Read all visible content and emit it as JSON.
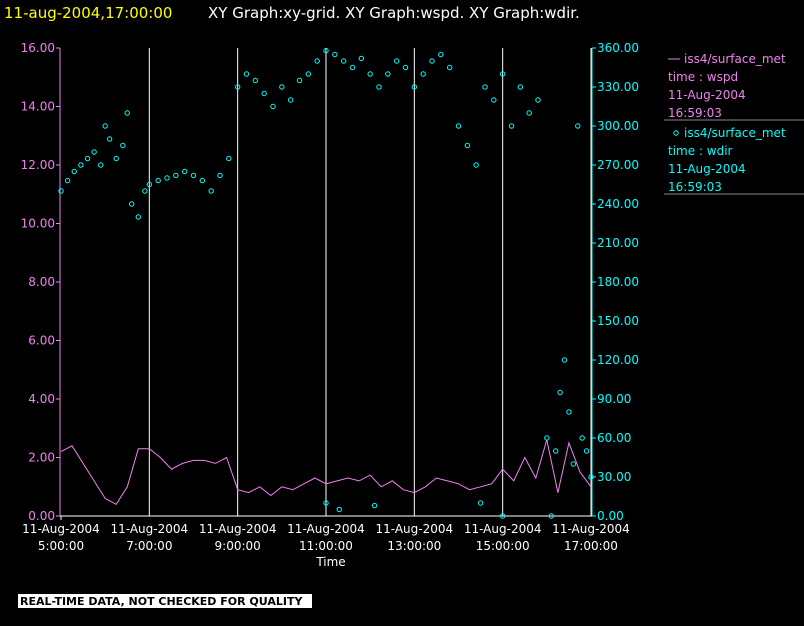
{
  "chart_data": {
    "type": "xy",
    "title_time": "11-aug-2004,17:00:00",
    "title": "XY Graph:xy-grid.  XY Graph:wspd.  XY Graph:wdir.",
    "xlabel": "Time",
    "footer": "REAL-TIME DATA, NOT CHECKED FOR QUALITY",
    "xlim": [
      5,
      17
    ],
    "xticks": [
      {
        "value": 5,
        "label": [
          "11-Aug-2004",
          "5:00:00"
        ]
      },
      {
        "value": 7,
        "label": [
          "11-Aug-2004",
          "7:00:00"
        ]
      },
      {
        "value": 9,
        "label": [
          "11-Aug-2004",
          "9:00:00"
        ]
      },
      {
        "value": 11,
        "label": [
          "11-Aug-2004",
          "11:00:00"
        ]
      },
      {
        "value": 13,
        "label": [
          "11-Aug-2004",
          "13:00:00"
        ]
      },
      {
        "value": 15,
        "label": [
          "11-Aug-2004",
          "15:00:00"
        ]
      },
      {
        "value": 17,
        "label": [
          "11-Aug-2004",
          "17:00:00"
        ]
      }
    ],
    "grid": true,
    "ylim": [
      0,
      16
    ],
    "yticks": [
      {
        "value": 0,
        "label": "0.00"
      },
      {
        "value": 2,
        "label": "2.00"
      },
      {
        "value": 4,
        "label": "4.00"
      },
      {
        "value": 6,
        "label": "6.00"
      },
      {
        "value": 8,
        "label": "8.00"
      },
      {
        "value": 10,
        "label": "10.00"
      },
      {
        "value": 12,
        "label": "12.00"
      },
      {
        "value": 14,
        "label": "14.00"
      },
      {
        "value": 16,
        "label": "16.00"
      }
    ],
    "y2lim": [
      0,
      360
    ],
    "y2ticks": [
      {
        "value": 0,
        "label": "0.00"
      },
      {
        "value": 30,
        "label": "30.00"
      },
      {
        "value": 60,
        "label": "60.00"
      },
      {
        "value": 90,
        "label": "90.00"
      },
      {
        "value": 120,
        "label": "120.00"
      },
      {
        "value": 150,
        "label": "150.00"
      },
      {
        "value": 180,
        "label": "180.00"
      },
      {
        "value": 210,
        "label": "210.00"
      },
      {
        "value": 240,
        "label": "240.00"
      },
      {
        "value": 270,
        "label": "270.00"
      },
      {
        "value": 300,
        "label": "300.00"
      },
      {
        "value": 330,
        "label": "330.00"
      },
      {
        "value": 360,
        "label": "360.00"
      }
    ],
    "series": [
      {
        "name": "iss4/surface_met",
        "legend_lines": [
          "time : wspd",
          "11-Aug-2004",
          "16:59:03"
        ],
        "style": "line",
        "color": "#ee82ee",
        "axis": "y",
        "x": [
          5,
          5.25,
          5.5,
          5.75,
          6,
          6.25,
          6.5,
          6.75,
          7,
          7.25,
          7.5,
          7.75,
          8,
          8.25,
          8.5,
          8.75,
          9,
          9.25,
          9.5,
          9.75,
          10,
          10.25,
          10.5,
          10.75,
          11,
          11.25,
          11.5,
          11.75,
          12,
          12.25,
          12.5,
          12.75,
          13,
          13.25,
          13.5,
          13.75,
          14,
          14.25,
          14.5,
          14.75,
          15,
          15.25,
          15.5,
          15.75,
          16,
          16.25,
          16.5,
          16.75,
          17
        ],
        "values": [
          2.2,
          2.4,
          1.8,
          1.2,
          0.6,
          0.4,
          1.0,
          2.3,
          2.3,
          2.0,
          1.6,
          1.8,
          1.9,
          1.9,
          1.8,
          2.0,
          0.9,
          0.8,
          1.0,
          0.7,
          1.0,
          0.9,
          1.1,
          1.3,
          1.1,
          1.2,
          1.3,
          1.2,
          1.4,
          1.0,
          1.2,
          0.9,
          0.8,
          1.0,
          1.3,
          1.2,
          1.1,
          0.9,
          1.0,
          1.1,
          1.6,
          1.2,
          2.0,
          1.3,
          2.6,
          0.8,
          2.5,
          1.5,
          1.0
        ]
      },
      {
        "name": "iss4/surface_met",
        "legend_lines": [
          "time : wdir",
          "11-Aug-2004",
          "16:59:03"
        ],
        "style": "points",
        "color": "#00ffff",
        "axis": "y2",
        "x": [
          5,
          5.15,
          5.3,
          5.45,
          5.6,
          5.75,
          5.9,
          6,
          6.1,
          6.25,
          6.4,
          6.5,
          6.6,
          6.75,
          6.9,
          7,
          7.2,
          7.4,
          7.6,
          7.8,
          8,
          8.2,
          8.4,
          8.6,
          8.8,
          9,
          9.2,
          9.4,
          9.6,
          9.8,
          10,
          10.2,
          10.4,
          10.6,
          10.8,
          11,
          11,
          11.2,
          11.3,
          11.4,
          11.6,
          11.8,
          12,
          12.1,
          12.2,
          12.4,
          12.6,
          12.8,
          13,
          13.2,
          13.4,
          13.6,
          13.8,
          14,
          14.2,
          14.4,
          14.5,
          14.6,
          14.8,
          15,
          15,
          15.2,
          15.4,
          15.6,
          15.8,
          16,
          16.1,
          16.2,
          16.3,
          16.4,
          16.5,
          16.6,
          16.7,
          16.8,
          16.9,
          17
        ],
        "values": [
          250,
          258,
          265,
          270,
          275,
          280,
          270,
          300,
          290,
          275,
          285,
          310,
          240,
          230,
          250,
          255,
          258,
          260,
          262,
          265,
          262,
          258,
          250,
          262,
          275,
          330,
          340,
          335,
          325,
          315,
          330,
          320,
          335,
          340,
          350,
          358,
          10,
          355,
          5,
          350,
          345,
          352,
          340,
          8,
          330,
          340,
          350,
          345,
          330,
          340,
          350,
          355,
          345,
          300,
          285,
          270,
          10,
          330,
          320,
          340,
          0,
          300,
          330,
          310,
          320,
          60,
          0,
          50,
          95,
          120,
          80,
          40,
          300,
          60,
          50,
          30
        ]
      }
    ]
  }
}
